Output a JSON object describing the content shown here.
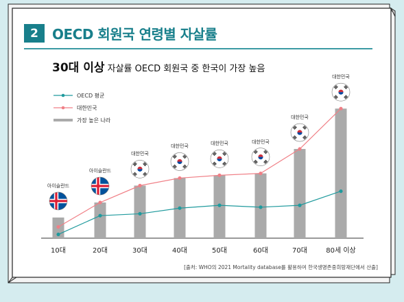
{
  "header": {
    "number": "2",
    "title": "OECD 회원국 연령별 자살률"
  },
  "subtitle": {
    "highlight": "30대 이상",
    "rest": " 자살률 OECD 회원국 중 한국이 가장 높음"
  },
  "source": "[출처: WHO의 2021 Mortality database를 활용하여 한국생명존중희망재단에서 산출]",
  "colors": {
    "background": "#d5ecef",
    "card": "#ffffff",
    "badge": "#187f8b",
    "title": "#187f8b",
    "oecd_line": "#1f9a9d",
    "korea_line": "#f07f86",
    "bars": "#aaaaaa",
    "flag_red": "#cd2e3a",
    "flag_blue": "#0047a0",
    "iceland_blue": "#02529c",
    "iceland_red": "#dc1e35"
  },
  "chart_data": {
    "type": "bar",
    "categories": [
      "10대",
      "20대",
      "30대",
      "40대",
      "50대",
      "60대",
      "70대",
      "80세 이상"
    ],
    "series": [
      {
        "name": "OECD 평균",
        "type": "line",
        "values": [
          2,
          12,
          13,
          16,
          17.5,
          16.5,
          17.5,
          25
        ]
      },
      {
        "name": "대한민국",
        "type": "line",
        "values": [
          6,
          19,
          28,
          32,
          33.5,
          34.5,
          47.5,
          69
        ]
      },
      {
        "name": "가장 높은 나라",
        "type": "bar",
        "values": [
          11,
          19,
          28,
          32,
          33.5,
          34.5,
          47.5,
          69
        ]
      }
    ],
    "highest_country": [
      "아이슬란드",
      "아이슬란드",
      "대한민국",
      "대한민국",
      "대한민국",
      "대한민국",
      "대한민국",
      "대한민국"
    ],
    "flag_icons": [
      "iceland-flag-icon",
      "iceland-flag-icon",
      "korea-flag-icon",
      "korea-flag-icon",
      "korea-flag-icon",
      "korea-flag-icon",
      "korea-flag-icon",
      "korea-flag-icon"
    ],
    "legend": [
      "OECD 평균",
      "대한민국",
      "가장 높은 나라"
    ],
    "legend_position": "top-left",
    "grid": false,
    "y_axis_visible": false,
    "ylim": [
      0,
      72
    ]
  }
}
